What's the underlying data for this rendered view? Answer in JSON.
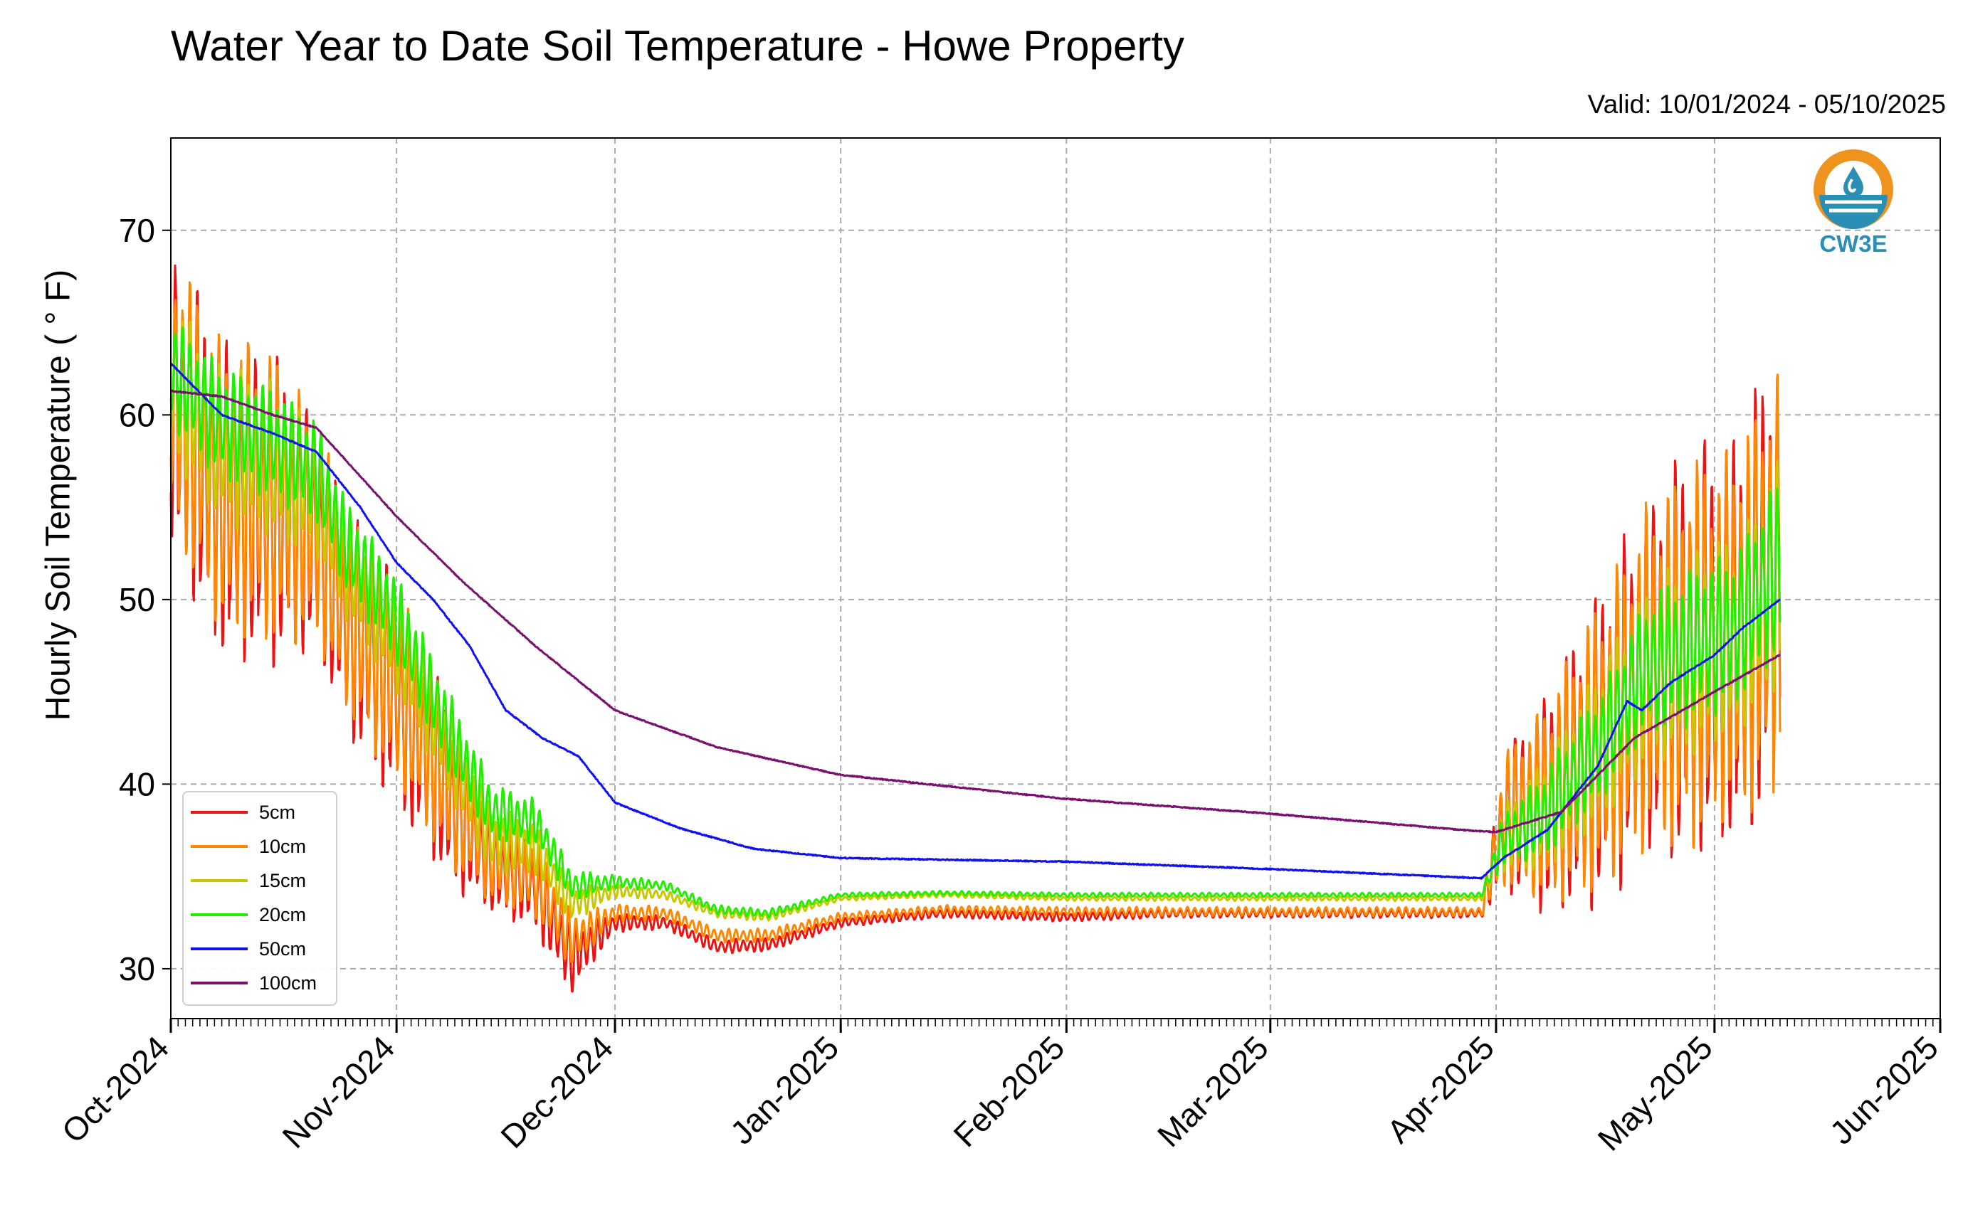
{
  "title": "Water Year to Date Soil Temperature - Howe Property",
  "subtitle": "Valid: 10/01/2024 - 05/10/2025",
  "logo": {
    "text": "CW3E",
    "colors": {
      "ring": "#f0921e",
      "water": "#2a8fb4"
    }
  },
  "chart_data": {
    "type": "line",
    "ylabel": "Hourly Soil Temperature ( ° F)",
    "xlabel": "",
    "x_range": [
      "2024-10-01",
      "2025-06-01"
    ],
    "ylim": [
      27.3,
      75
    ],
    "grid": true,
    "legend_position": "bottom-left",
    "x_ticks": [
      {
        "date": "2024-10-01",
        "label": "Oct-2024"
      },
      {
        "date": "2024-11-01",
        "label": "Nov-2024"
      },
      {
        "date": "2024-12-01",
        "label": "Dec-2024"
      },
      {
        "date": "2025-01-01",
        "label": "Jan-2025"
      },
      {
        "date": "2025-02-01",
        "label": "Feb-2025"
      },
      {
        "date": "2025-03-01",
        "label": "Mar-2025"
      },
      {
        "date": "2025-04-01",
        "label": "Apr-2025"
      },
      {
        "date": "2025-05-01",
        "label": "May-2025"
      },
      {
        "date": "2025-06-01",
        "label": "Jun-2025"
      }
    ],
    "y_ticks": [
      30,
      40,
      50,
      60,
      70
    ],
    "series": [
      {
        "name": "5cm",
        "color": "#ee1111",
        "x": [
          "2024-10-01",
          "2024-10-08",
          "2024-10-15",
          "2024-10-21",
          "2024-10-25",
          "2024-11-01",
          "2024-11-08",
          "2024-11-14",
          "2024-11-20",
          "2024-11-25",
          "2024-12-01",
          "2024-12-08",
          "2024-12-15",
          "2024-12-22",
          "2025-01-01",
          "2025-01-15",
          "2025-02-01",
          "2025-02-15",
          "2025-03-01",
          "2025-03-15",
          "2025-03-30",
          "2025-04-02",
          "2025-04-08",
          "2025-04-15",
          "2025-04-22",
          "2025-04-28",
          "2025-05-04",
          "2025-05-10"
        ],
        "y": [
          61,
          55.5,
          55,
          53.5,
          49,
          45,
          39.5,
          35.5,
          34.5,
          30.5,
          32.5,
          32.5,
          31.2,
          31.3,
          32.5,
          33,
          32.8,
          33,
          33,
          33,
          33,
          38,
          39,
          42,
          46,
          47,
          48,
          52
        ],
        "amp": [
          7,
          7,
          7,
          5,
          5,
          5,
          4,
          2,
          2,
          1.5,
          0.4,
          0.3,
          0.3,
          0.3,
          0.2,
          0.2,
          0.2,
          0.2,
          0.2,
          0.2,
          0.2,
          3,
          5,
          7,
          8,
          9,
          9,
          10
        ]
      },
      {
        "name": "10cm",
        "color": "#ff8800",
        "x": [
          "2024-10-01",
          "2024-10-08",
          "2024-10-15",
          "2024-10-21",
          "2024-10-25",
          "2024-11-01",
          "2024-11-08",
          "2024-11-14",
          "2024-11-20",
          "2024-11-25",
          "2024-12-01",
          "2024-12-08",
          "2024-12-15",
          "2024-12-22",
          "2025-01-01",
          "2025-01-15",
          "2025-02-01",
          "2025-02-15",
          "2025-03-01",
          "2025-03-15",
          "2025-03-30",
          "2025-04-02",
          "2025-04-08",
          "2025-04-15",
          "2025-04-22",
          "2025-04-28",
          "2025-05-04",
          "2025-05-10"
        ],
        "y": [
          61.5,
          56,
          55.5,
          54,
          49.5,
          45.5,
          40,
          36,
          35,
          31.5,
          33,
          33,
          31.8,
          31.8,
          32.8,
          33.2,
          33.1,
          33.1,
          33.1,
          33.1,
          33.1,
          38,
          39,
          42,
          46,
          47,
          48,
          51.5
        ],
        "amp": [
          6.5,
          6.5,
          6.5,
          5,
          4.5,
          4.5,
          3.5,
          2,
          1.8,
          1.2,
          0.4,
          0.3,
          0.3,
          0.3,
          0.2,
          0.2,
          0.2,
          0.2,
          0.2,
          0.2,
          0.2,
          3,
          4.5,
          6.5,
          7.5,
          8.5,
          8.5,
          9.5
        ]
      },
      {
        "name": "15cm",
        "color": "#c8c800",
        "x": [
          "2024-10-01",
          "2024-10-08",
          "2024-10-15",
          "2024-10-21",
          "2024-10-25",
          "2024-11-01",
          "2024-11-08",
          "2024-11-14",
          "2024-11-20",
          "2024-11-25",
          "2024-12-01",
          "2024-12-08",
          "2024-12-15",
          "2024-12-22",
          "2025-01-01",
          "2025-01-15",
          "2025-02-01",
          "2025-02-15",
          "2025-03-01",
          "2025-03-15",
          "2025-03-30",
          "2025-04-02",
          "2025-04-08",
          "2025-04-15",
          "2025-04-22",
          "2025-04-28",
          "2025-05-04",
          "2025-05-10"
        ],
        "y": [
          62,
          58.5,
          57.5,
          56,
          52,
          48,
          42,
          37,
          36.5,
          33.5,
          34.2,
          34,
          33,
          32.8,
          33.8,
          34,
          33.8,
          33.8,
          33.8,
          33.8,
          33.8,
          37,
          38.5,
          42,
          46,
          47,
          48,
          51.5
        ],
        "amp": [
          3.5,
          3.5,
          3.5,
          3,
          2.5,
          2.5,
          2,
          1.5,
          1.2,
          0.8,
          0.3,
          0.2,
          0.2,
          0.2,
          0.1,
          0.1,
          0.1,
          0.1,
          0.1,
          0.1,
          0.1,
          1.5,
          2.5,
          3.5,
          4,
          4.5,
          4.5,
          5
        ]
      },
      {
        "name": "20cm",
        "color": "#22ee00",
        "x": [
          "2024-10-01",
          "2024-10-08",
          "2024-10-15",
          "2024-10-21",
          "2024-10-25",
          "2024-11-01",
          "2024-11-08",
          "2024-11-14",
          "2024-11-20",
          "2024-11-25",
          "2024-12-01",
          "2024-12-08",
          "2024-12-15",
          "2024-12-22",
          "2025-01-01",
          "2025-01-15",
          "2025-02-01",
          "2025-02-15",
          "2025-03-01",
          "2025-03-15",
          "2025-03-30",
          "2025-04-02",
          "2025-04-08",
          "2025-04-15",
          "2025-04-22",
          "2025-04-28",
          "2025-05-04",
          "2025-05-10"
        ],
        "y": [
          62.5,
          59.5,
          58.5,
          57,
          53,
          49,
          43,
          38.5,
          38,
          34.5,
          34.7,
          34.5,
          33.2,
          33,
          34,
          34.1,
          34,
          34,
          34,
          34,
          34,
          37,
          38.5,
          42,
          46.5,
          47.5,
          48.5,
          52
        ],
        "amp": [
          2.5,
          2.5,
          2.5,
          2.3,
          2,
          2,
          1.8,
          1.3,
          1,
          0.7,
          0.3,
          0.2,
          0.2,
          0.2,
          0.1,
          0.1,
          0.1,
          0.1,
          0.1,
          0.1,
          0.1,
          1.2,
          2,
          2.5,
          3,
          3.5,
          3.5,
          4
        ]
      },
      {
        "name": "50cm",
        "color": "#1111ee",
        "x": [
          "2024-10-01",
          "2024-10-08",
          "2024-10-15",
          "2024-10-21",
          "2024-10-27",
          "2024-11-01",
          "2024-11-06",
          "2024-11-11",
          "2024-11-16",
          "2024-11-21",
          "2024-11-26",
          "2024-12-01",
          "2024-12-10",
          "2024-12-20",
          "2025-01-01",
          "2025-02-01",
          "2025-03-01",
          "2025-03-30",
          "2025-04-02",
          "2025-04-08",
          "2025-04-15",
          "2025-04-19",
          "2025-04-21",
          "2025-04-25",
          "2025-05-01",
          "2025-05-05",
          "2025-05-10"
        ],
        "y": [
          62.8,
          60,
          59,
          58,
          55,
          52,
          50,
          47.5,
          44,
          42.5,
          41.5,
          39,
          37.6,
          36.5,
          36,
          35.8,
          35.4,
          34.9,
          36,
          37.5,
          41,
          44.5,
          44,
          45.5,
          47,
          48.5,
          50
        ],
        "amp": [
          0,
          0,
          0,
          0,
          0,
          0,
          0,
          0,
          0,
          0,
          0,
          0,
          0,
          0,
          0,
          0,
          0,
          0,
          0,
          0,
          0,
          0,
          0,
          0,
          0,
          0,
          0
        ]
      },
      {
        "name": "100cm",
        "color": "#7a1070",
        "x": [
          "2024-10-01",
          "2024-10-08",
          "2024-10-15",
          "2024-10-21",
          "2024-11-01",
          "2024-11-10",
          "2024-11-20",
          "2024-12-01",
          "2024-12-15",
          "2025-01-01",
          "2025-02-01",
          "2025-03-01",
          "2025-03-28",
          "2025-04-01",
          "2025-04-10",
          "2025-04-20",
          "2025-05-01",
          "2025-05-10"
        ],
        "y": [
          61.3,
          61,
          60,
          59.3,
          54.5,
          51,
          47.5,
          44,
          42,
          40.5,
          39.2,
          38.4,
          37.5,
          37.4,
          38.5,
          42.5,
          45,
          47
        ],
        "amp": [
          0,
          0,
          0,
          0,
          0,
          0,
          0,
          0,
          0,
          0,
          0,
          0,
          0,
          0,
          0,
          0,
          0,
          0
        ]
      }
    ]
  }
}
